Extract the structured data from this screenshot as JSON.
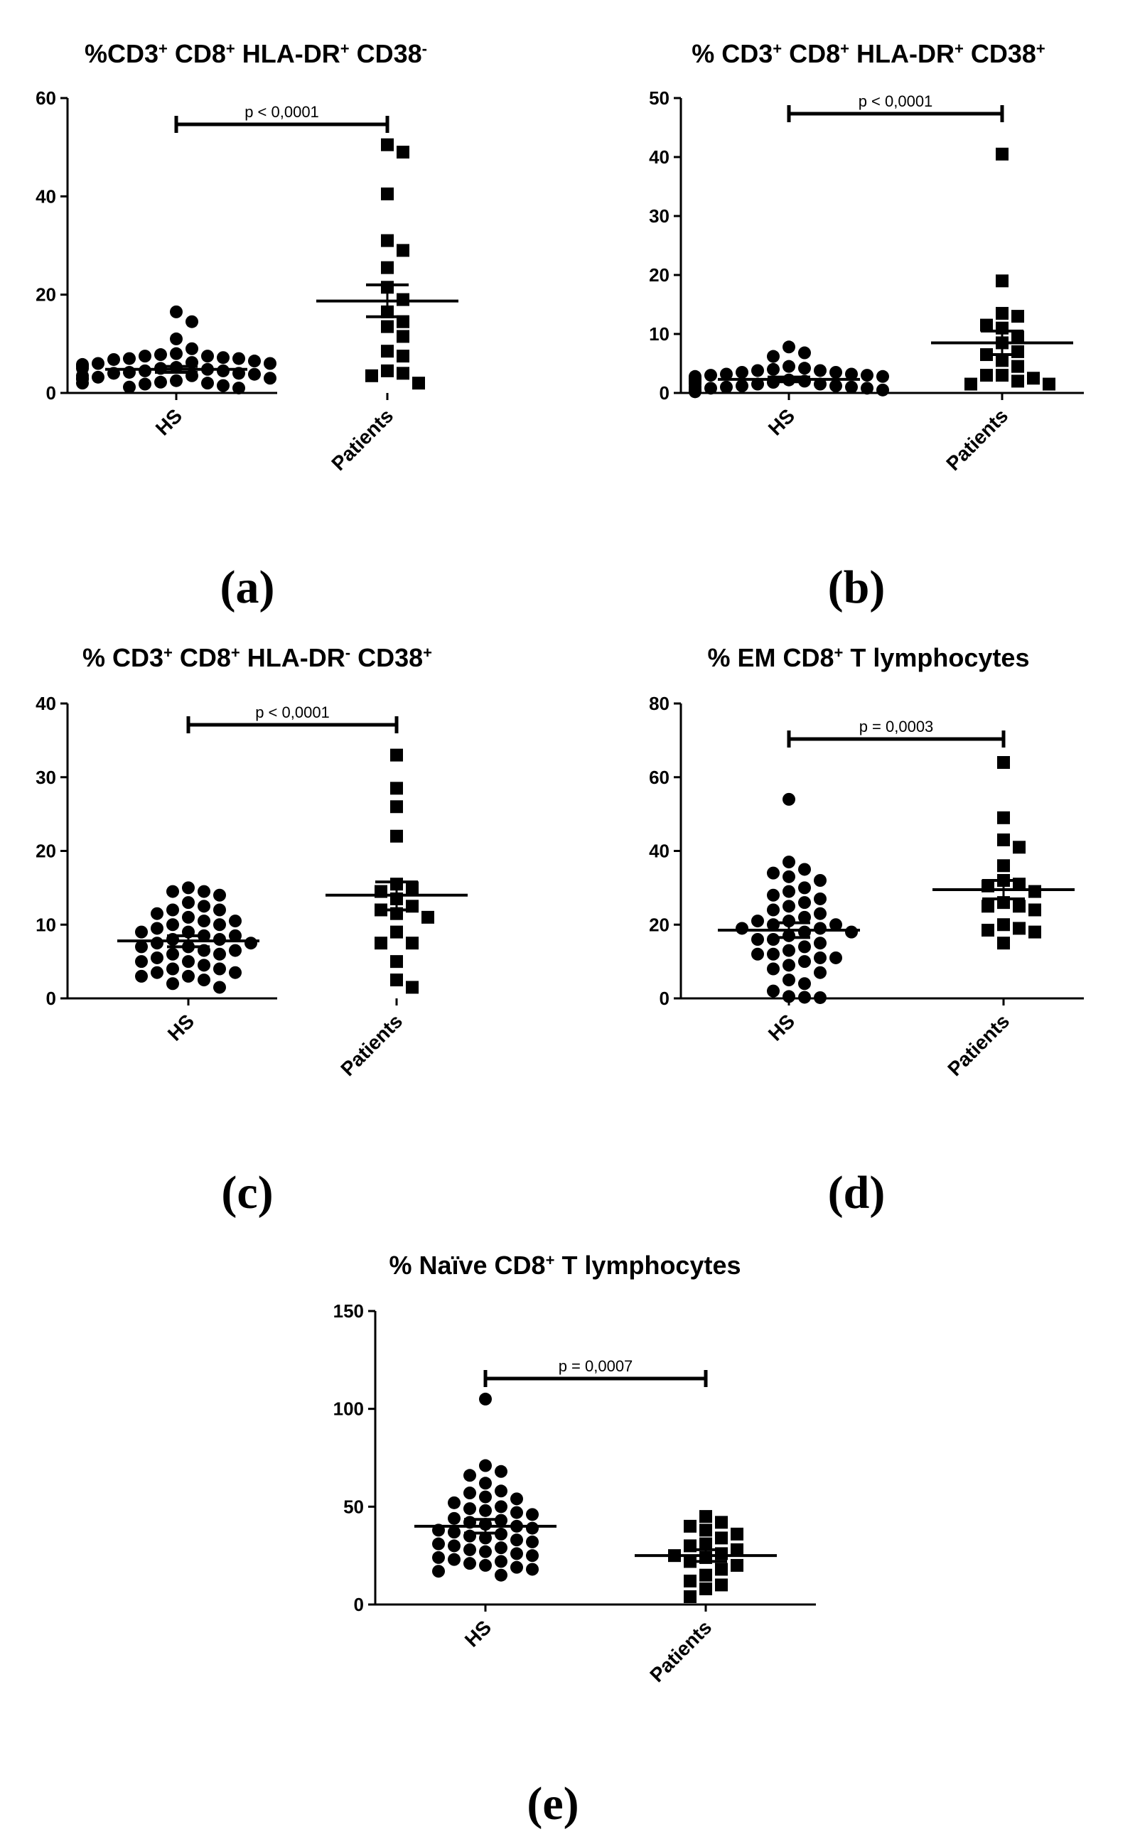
{
  "chart_data": [
    {
      "type": "scatter",
      "panel_label": "(a)",
      "title": {
        "base": "%CD3",
        "sup1": "+",
        "mid1": " CD8",
        "sup2": "+",
        "mid2": " HLA-DR",
        "sup3": "+",
        "mid3": " CD38",
        "sup4": "-"
      },
      "ylim": [
        0,
        60
      ],
      "yticks": [
        "0",
        "20",
        "40",
        "60"
      ],
      "categories": [
        "HS",
        "Patients"
      ],
      "p_value": "p < 0,0001",
      "series": [
        {
          "name": "HS",
          "marker": "circle",
          "mean": 4.8,
          "sem_low": 4.2,
          "sem_high": 5.4,
          "values": [
            16.5,
            14.5,
            11.0,
            9.0,
            8.0,
            7.8,
            7.5,
            7.5,
            7.2,
            7.0,
            7.0,
            6.8,
            6.5,
            6.2,
            6.0,
            6.0,
            5.8,
            5.5,
            5.5,
            5.2,
            5.0,
            5.0,
            4.8,
            4.5,
            4.5,
            4.2,
            4.0,
            4.0,
            3.8,
            3.5,
            3.5,
            3.2,
            3.0,
            3.0,
            2.8,
            2.5,
            2.2,
            2.0,
            2.0,
            1.8,
            1.5,
            1.2,
            1.0
          ]
        },
        {
          "name": "Patients",
          "marker": "square",
          "mean": 18.7,
          "sem_low": 15.5,
          "sem_high": 22.0,
          "values": [
            50.5,
            49.0,
            40.5,
            31.0,
            29.0,
            25.5,
            21.5,
            19.0,
            16.5,
            14.5,
            13.5,
            11.5,
            8.5,
            7.5,
            4.5,
            4.0,
            3.5,
            2.0
          ]
        }
      ]
    },
    {
      "type": "scatter",
      "panel_label": "(b)",
      "title": {
        "base": "% CD3",
        "sup1": "+",
        "mid1": " CD8",
        "sup2": "+",
        "mid2": " HLA-DR",
        "sup3": "+",
        "mid3": " CD38",
        "sup4": "+"
      },
      "ylim": [
        0,
        50
      ],
      "yticks": [
        "0",
        "10",
        "20",
        "30",
        "40",
        "50"
      ],
      "categories": [
        "HS",
        "Patients"
      ],
      "p_value": "p < 0,0001",
      "series": [
        {
          "name": "HS",
          "marker": "circle",
          "mean": 2.3,
          "sem_low": 1.9,
          "sem_high": 2.7,
          "values": [
            7.8,
            6.8,
            6.2,
            4.5,
            4.2,
            4.0,
            3.8,
            3.8,
            3.5,
            3.5,
            3.2,
            3.2,
            3.0,
            3.0,
            2.8,
            2.8,
            2.5,
            2.5,
            2.2,
            2.2,
            2.0,
            2.0,
            2.0,
            1.8,
            1.8,
            1.5,
            1.5,
            1.5,
            1.2,
            1.2,
            1.0,
            1.0,
            1.0,
            0.8,
            0.8,
            0.5,
            0.5,
            0.5,
            0.3,
            0.2
          ]
        },
        {
          "name": "Patients",
          "marker": "square",
          "mean": 8.5,
          "sem_low": 6.5,
          "sem_high": 10.5,
          "values": [
            40.5,
            19.0,
            13.5,
            13.0,
            11.5,
            11.0,
            9.5,
            8.5,
            7.0,
            6.5,
            5.5,
            4.5,
            3.0,
            3.0,
            2.5,
            2.0,
            1.5,
            1.5
          ]
        }
      ]
    },
    {
      "type": "scatter",
      "panel_label": "(c)",
      "title": {
        "base": "% CD3",
        "sup1": "+",
        "mid1": " CD8",
        "sup2": "+",
        "mid2": " HLA-DR",
        "sup3": "-",
        "mid3": " CD38",
        "sup4": "+"
      },
      "ylim": [
        0,
        40
      ],
      "yticks": [
        "0",
        "10",
        "20",
        "30",
        "40"
      ],
      "categories": [
        "HS",
        "Patients"
      ],
      "p_value": "p < 0,0001",
      "series": [
        {
          "name": "HS",
          "marker": "circle",
          "mean": 7.8,
          "sem_low": 7.0,
          "sem_high": 8.5,
          "values": [
            15.0,
            14.5,
            14.5,
            14.0,
            13.0,
            12.5,
            12.0,
            12.0,
            11.5,
            11.0,
            10.5,
            10.5,
            10.0,
            10.0,
            9.5,
            9.0,
            9.0,
            8.5,
            8.5,
            8.0,
            8.0,
            7.5,
            7.5,
            7.0,
            7.0,
            6.5,
            6.5,
            6.0,
            6.0,
            5.5,
            5.0,
            5.0,
            4.5,
            4.0,
            4.0,
            3.5,
            3.5,
            3.0,
            3.0,
            2.5,
            2.0,
            1.5
          ]
        },
        {
          "name": "Patients",
          "marker": "square",
          "mean": 14.0,
          "sem_low": 12.0,
          "sem_high": 15.8,
          "values": [
            33.0,
            28.5,
            26.0,
            22.0,
            15.5,
            15.0,
            14.5,
            13.5,
            12.5,
            12.0,
            11.5,
            11.0,
            9.0,
            7.5,
            7.5,
            5.0,
            2.5,
            1.5
          ]
        }
      ]
    },
    {
      "type": "scatter",
      "panel_label": "(d)",
      "title": {
        "base": "% EM CD8",
        "sup1": "+",
        "mid1": " T lymphocytes",
        "sup2": "",
        "mid2": "",
        "sup3": "",
        "mid3": "",
        "sup4": ""
      },
      "ylim": [
        0,
        80
      ],
      "yticks": [
        "0",
        "20",
        "40",
        "60",
        "80"
      ],
      "categories": [
        "HS",
        "Patients"
      ],
      "p_value": "p = 0,0003",
      "series": [
        {
          "name": "HS",
          "marker": "circle",
          "mean": 18.5,
          "sem_low": 16.5,
          "sem_high": 20.5,
          "values": [
            54.0,
            37.0,
            35.0,
            34.0,
            33.0,
            32.0,
            30.0,
            29.0,
            28.0,
            27.0,
            26.0,
            25.0,
            24.0,
            23.0,
            22.0,
            21.0,
            21.0,
            20.0,
            20.0,
            19.0,
            19.0,
            18.0,
            18.0,
            17.0,
            16.0,
            16.0,
            15.0,
            14.0,
            13.0,
            12.0,
            12.0,
            11.0,
            11.0,
            10.0,
            9.0,
            8.0,
            7.0,
            5.0,
            4.0,
            2.0,
            0.5,
            0.3,
            0.2
          ]
        },
        {
          "name": "Patients",
          "marker": "square",
          "mean": 29.5,
          "sem_low": 27.0,
          "sem_high": 32.0,
          "values": [
            64.0,
            49.0,
            43.0,
            41.0,
            36.0,
            32.0,
            31.0,
            30.5,
            29.0,
            26.0,
            25.0,
            25.0,
            24.0,
            20.0,
            19.0,
            18.5,
            18.0,
            15.0
          ]
        }
      ]
    },
    {
      "type": "scatter",
      "panel_label": "(e)",
      "title": {
        "base": "% Naïve CD8",
        "sup1": "+",
        "mid1": " T lymphocytes",
        "sup2": "",
        "mid2": "",
        "sup3": "",
        "mid3": "",
        "sup4": ""
      },
      "ylim": [
        0,
        150
      ],
      "yticks": [
        "0",
        "50",
        "100",
        "150"
      ],
      "categories": [
        "HS",
        "Patients"
      ],
      "p_value": "p = 0,0007",
      "series": [
        {
          "name": "HS",
          "marker": "circle",
          "mean": 40.0,
          "sem_low": 36.5,
          "sem_high": 43.5,
          "values": [
            105.0,
            71.0,
            68.0,
            66.0,
            62.0,
            58.0,
            57.0,
            55.0,
            54.0,
            52.0,
            50.0,
            49.0,
            48.0,
            47.0,
            46.0,
            44.0,
            43.0,
            42.0,
            41.0,
            40.0,
            39.0,
            38.0,
            37.0,
            36.0,
            35.0,
            34.0,
            33.0,
            32.0,
            31.0,
            30.0,
            29.0,
            28.0,
            27.0,
            26.0,
            25.0,
            24.0,
            23.0,
            22.0,
            21.0,
            20.0,
            19.0,
            18.0,
            17.0,
            15.0
          ]
        },
        {
          "name": "Patients",
          "marker": "square",
          "mean": 25.0,
          "sem_low": 22.0,
          "sem_high": 28.0,
          "values": [
            45.0,
            42.0,
            40.0,
            38.0,
            36.0,
            34.0,
            31.0,
            30.0,
            28.0,
            26.0,
            25.0,
            24.0,
            22.0,
            20.0,
            18.0,
            15.0,
            12.0,
            10.0,
            8.0,
            4.0
          ]
        }
      ]
    }
  ]
}
